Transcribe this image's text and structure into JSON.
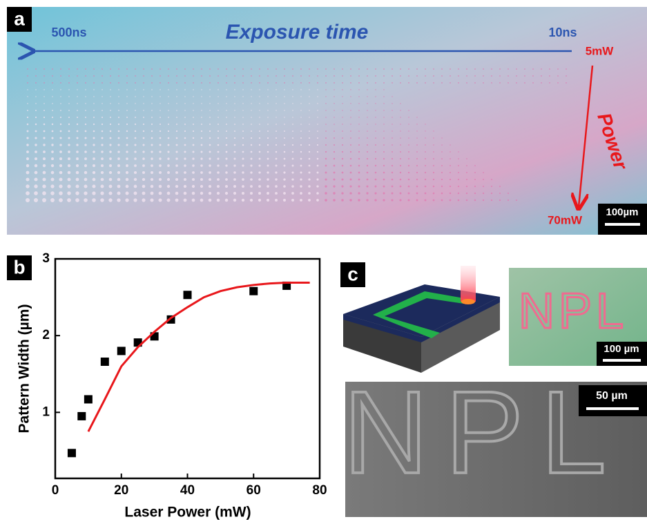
{
  "panel_a": {
    "label": "a",
    "title": "Exposure time",
    "left_time": "500ns",
    "right_time": "10ns",
    "top_power": "5mW",
    "power": "Power",
    "bottom_power": "70mW",
    "scale": "100µm"
  },
  "panel_b": {
    "label": "b"
  },
  "chart_data": {
    "type": "scatter",
    "x_label": "Laser Power (mW)",
    "y_label": "Pattern Width (µm)",
    "xlim": [
      0,
      80
    ],
    "xticks": [
      0,
      20,
      40,
      60,
      80
    ],
    "ylim": [
      0.14,
      3
    ],
    "yticks": [
      1,
      2,
      3
    ],
    "series": [
      {
        "color": "#000000",
        "style": "marker",
        "x": [
          5,
          8,
          10,
          15,
          20,
          25,
          30,
          35,
          40,
          60,
          70
        ],
        "values": [
          0.47,
          0.95,
          1.17,
          1.66,
          1.8,
          1.91,
          1.99,
          2.21,
          2.53,
          2.58,
          2.65
        ]
      },
      {
        "color": "#e8171b",
        "style": "line",
        "x": [
          10,
          15,
          20,
          25,
          30,
          35,
          40,
          45,
          50,
          55,
          60,
          65,
          70,
          77
        ],
        "values": [
          0.75,
          1.17,
          1.6,
          1.85,
          2.05,
          2.23,
          2.37,
          2.5,
          2.58,
          2.63,
          2.66,
          2.68,
          2.69,
          2.69
        ]
      }
    ]
  },
  "panel_c": {
    "label": "c",
    "optical_text": "NPL",
    "optical_scale": "100 µm",
    "sem_text": "NPL",
    "sem_scale": "50 µm"
  }
}
